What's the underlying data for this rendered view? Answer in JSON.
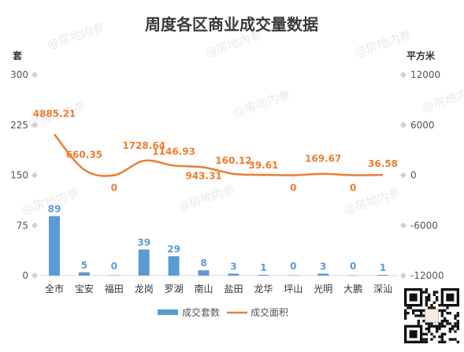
{
  "chart_data": {
    "type": "bar+line",
    "title": "周度各区商业成交量数据",
    "categories": [
      "全市",
      "宝安",
      "福田",
      "龙岗",
      "罗湖",
      "南山",
      "盐田",
      "龙华",
      "坪山",
      "光明",
      "大鹏",
      "深汕"
    ],
    "series": [
      {
        "name": "成交套数",
        "type": "bar",
        "axis": "left",
        "color": "#5b9bd5",
        "values": [
          89,
          5,
          0,
          39,
          29,
          8,
          3,
          1,
          0,
          3,
          0,
          1
        ],
        "labels": [
          "89",
          "5",
          "0",
          "39",
          "29",
          "8",
          "3",
          "1",
          "0",
          "3",
          "0",
          "1"
        ]
      },
      {
        "name": "成交面积",
        "type": "line",
        "axis": "right",
        "color": "#ed7d31",
        "values": [
          4885.21,
          660.35,
          0,
          1728.64,
          1146.93,
          943.31,
          160.12,
          39.61,
          0,
          169.67,
          0,
          36.58
        ],
        "labels": [
          "4885.21",
          "660.35",
          "0",
          "1728.64",
          "1146.93",
          "943.31",
          "160.12",
          "39.61",
          "0",
          "169.67",
          "0",
          "36.58"
        ]
      }
    ],
    "left_axis": {
      "unit": "套",
      "range": [
        0,
        300
      ],
      "ticks": [
        0,
        75,
        150,
        225,
        300
      ],
      "tick_labels": [
        "0",
        "75",
        "150",
        "225",
        "300"
      ]
    },
    "right_axis": {
      "unit": "平方米",
      "range": [
        -12000,
        12000
      ],
      "ticks": [
        -12000,
        -6000,
        0,
        6000,
        12000
      ],
      "tick_labels": [
        "-12000",
        "-6000",
        "0",
        "6000",
        "12000"
      ]
    },
    "legend": {
      "position": "bottom"
    },
    "grid": false,
    "watermark_text": "@房地内参"
  }
}
